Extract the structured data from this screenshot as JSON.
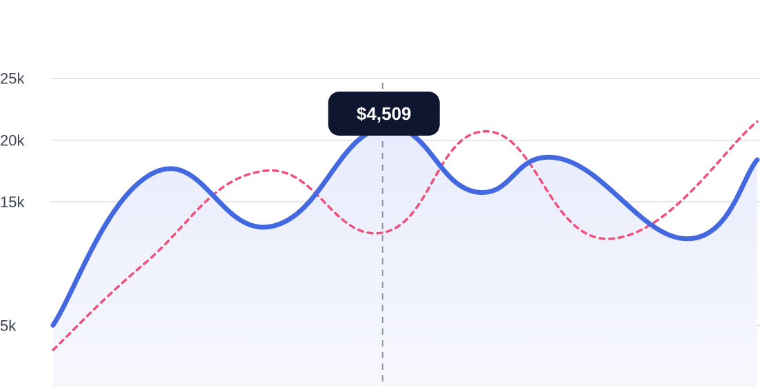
{
  "chart_data": {
    "type": "area",
    "title": "",
    "xlabel": "",
    "ylabel": "",
    "ylim": [
      0,
      30000
    ],
    "grid": true,
    "y_ticks": [
      {
        "value": 25000,
        "label": "25k"
      },
      {
        "value": 20000,
        "label": "20k"
      },
      {
        "value": 15000,
        "label": "15k"
      },
      {
        "value": 5000,
        "label": "5k"
      }
    ],
    "series": [
      {
        "style": "solid-area",
        "color": "#4468e0",
        "fill_color": "#e9edfb",
        "points": [
          [
            0,
            5000
          ],
          [
            0.145,
            17400
          ],
          [
            0.31,
            13000
          ],
          [
            0.468,
            21000
          ],
          [
            0.6,
            15800
          ],
          [
            0.72,
            18500
          ],
          [
            0.9,
            12000
          ],
          [
            1,
            18400
          ]
        ]
      },
      {
        "style": "dashed",
        "color": "#f0507a",
        "points": [
          [
            0,
            3000
          ],
          [
            0.13,
            10000
          ],
          [
            0.3,
            17500
          ],
          [
            0.468,
            12500
          ],
          [
            0.616,
            20700
          ],
          [
            0.79,
            12000
          ],
          [
            1,
            21500
          ]
        ]
      }
    ],
    "tooltip": {
      "x": 0.468,
      "y": 21000,
      "label": "$4,509",
      "bg_color": "#0f1630",
      "text_color": "#ffffff"
    },
    "colors": {
      "grid": "#c9ccd3",
      "crosshair": "#8b8f98"
    }
  }
}
